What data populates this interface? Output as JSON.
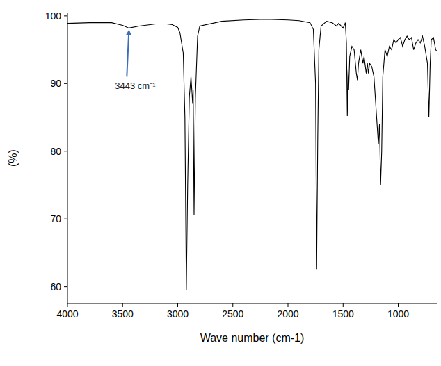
{
  "chart_data": {
    "type": "line",
    "x_label": "Wave number (cm-1)",
    "y_label": "(%)",
    "color": "#000000",
    "xlim": [
      4000,
      650
    ],
    "ylim": [
      57.5,
      100.5
    ],
    "xticks": [
      4000,
      3500,
      3000,
      2500,
      2000,
      1500,
      1000
    ],
    "yticks": [
      60,
      70,
      80,
      90,
      100
    ],
    "grid": false,
    "annotations": [
      {
        "text": "3443 cm⁻¹",
        "x": 3443,
        "y": 98.2,
        "color": "#3b6fb6"
      }
    ],
    "x": [
      4000,
      3800,
      3600,
      3500,
      3443,
      3350,
      3200,
      3100,
      3050,
      3000,
      2980,
      2960,
      2950,
      2935,
      2922,
      2910,
      2895,
      2880,
      2870,
      2865,
      2860,
      2852,
      2840,
      2820,
      2800,
      2600,
      2400,
      2200,
      2000,
      1900,
      1800,
      1770,
      1750,
      1740,
      1730,
      1720,
      1700,
      1650,
      1600,
      1560,
      1540,
      1500,
      1480,
      1470,
      1462,
      1455,
      1450,
      1440,
      1420,
      1400,
      1380,
      1370,
      1360,
      1340,
      1320,
      1310,
      1290,
      1280,
      1270,
      1260,
      1240,
      1220,
      1200,
      1180,
      1170,
      1160,
      1150,
      1140,
      1120,
      1100,
      1080,
      1060,
      1040,
      1020,
      1000,
      980,
      960,
      940,
      920,
      900,
      880,
      860,
      840,
      820,
      800,
      780,
      760,
      735,
      722,
      710,
      700,
      680,
      660,
      650
    ],
    "values": [
      98.9,
      99.0,
      99.0,
      98.6,
      98.2,
      98.5,
      98.8,
      98.8,
      98.7,
      98.3,
      97.5,
      95.5,
      94.5,
      85,
      59.5,
      75,
      88,
      91,
      88.5,
      87,
      89,
      70.6,
      88,
      97,
      98.5,
      99.2,
      99.4,
      99.5,
      99.4,
      99.3,
      99.0,
      98,
      90,
      62.5,
      82,
      95,
      98.5,
      99.2,
      99.0,
      98.5,
      98.9,
      98.2,
      99.0,
      96,
      85.2,
      92,
      89,
      94,
      95.5,
      95,
      91.5,
      90.5,
      93,
      95,
      93,
      94,
      91.5,
      93,
      91.5,
      93,
      92.5,
      91,
      86,
      81,
      84,
      75,
      80,
      91,
      95,
      94,
      95.5,
      95,
      96.5,
      96.0,
      96.5,
      96.8,
      95.5,
      96.5,
      97,
      96.5,
      96.8,
      95,
      96,
      96.5,
      96,
      97,
      95.5,
      93,
      85,
      93,
      96.5,
      96.8,
      95,
      94.8
    ]
  }
}
